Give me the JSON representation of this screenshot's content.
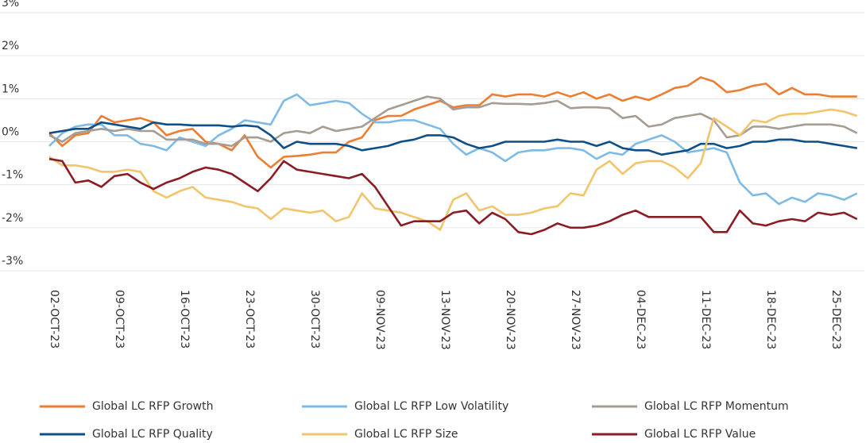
{
  "chart_data": {
    "type": "line",
    "categories": [
      "02-OCT-23",
      null,
      null,
      null,
      null,
      "09-OCT-23",
      null,
      null,
      null,
      null,
      "16-OCT-23",
      null,
      null,
      null,
      null,
      "23-OCT-23",
      null,
      null,
      null,
      null,
      "30-OCT-23",
      null,
      null,
      null,
      null,
      "09-NOV-23",
      null,
      null,
      null,
      null,
      "13-NOV-23",
      null,
      null,
      null,
      null,
      "20-NOV-23",
      null,
      null,
      null,
      null,
      "27-NOV-23",
      null,
      null,
      null,
      null,
      "04-DEC-23",
      null,
      null,
      null,
      null,
      "11-DEC-23",
      null,
      null,
      null,
      null,
      "18-DEC-23",
      null,
      null,
      null,
      null,
      "25-DEC-23",
      null,
      null
    ],
    "ylim": [
      -3,
      3
    ],
    "yticks": [
      {
        "value": -3,
        "label": "-3%"
      },
      {
        "value": -2,
        "label": "-2%"
      },
      {
        "value": -1,
        "label": "-1%"
      },
      {
        "value": 0,
        "label": "0%"
      },
      {
        "value": 1,
        "label": "1%"
      },
      {
        "value": 2,
        "label": "2%"
      },
      {
        "value": 3,
        "label": "3%"
      }
    ],
    "grid": true,
    "legend": "bottom",
    "series": [
      {
        "name": "Global LC RFP Growth",
        "color": "#ed7d31",
        "values": [
          0.2,
          -0.1,
          0.15,
          0.2,
          0.6,
          0.45,
          0.5,
          0.55,
          0.45,
          0.15,
          0.25,
          0.3,
          0.0,
          -0.05,
          -0.2,
          0.15,
          -0.35,
          -0.6,
          -0.35,
          -0.33,
          -0.3,
          -0.25,
          -0.25,
          0.0,
          0.1,
          0.5,
          0.6,
          0.6,
          0.75,
          0.85,
          0.95,
          0.8,
          0.85,
          0.85,
          1.1,
          1.05,
          1.1,
          1.1,
          1.05,
          1.15,
          1.05,
          1.15,
          1.0,
          1.1,
          0.95,
          1.05,
          0.97,
          1.1,
          1.25,
          1.3,
          1.5,
          1.4,
          1.15,
          1.2,
          1.3,
          1.35,
          1.1,
          1.25,
          1.1,
          1.1,
          1.05,
          1.05,
          1.05
        ]
      },
      {
        "name": "Global LC RFP Low Volatility",
        "color": "#7dbbe6",
        "values": [
          -0.1,
          0.2,
          0.35,
          0.4,
          0.4,
          0.15,
          0.15,
          -0.05,
          -0.1,
          -0.2,
          0.1,
          0.0,
          -0.1,
          0.15,
          0.3,
          0.5,
          0.45,
          0.4,
          0.95,
          1.1,
          0.85,
          0.9,
          0.95,
          0.9,
          0.65,
          0.45,
          0.45,
          0.5,
          0.5,
          0.4,
          0.3,
          -0.05,
          -0.3,
          -0.15,
          -0.25,
          -0.45,
          -0.25,
          -0.2,
          -0.2,
          -0.15,
          -0.15,
          -0.2,
          -0.4,
          -0.25,
          -0.3,
          -0.05,
          0.05,
          0.15,
          0.0,
          -0.25,
          -0.2,
          -0.15,
          -0.25,
          -0.95,
          -1.25,
          -1.2,
          -1.45,
          -1.3,
          -1.4,
          -1.2,
          -1.25,
          -1.35,
          -1.2
        ]
      },
      {
        "name": "Global LC RFP Momentum",
        "color": "#a59c94",
        "values": [
          0.15,
          0.0,
          0.2,
          0.25,
          0.3,
          0.25,
          0.3,
          0.25,
          0.25,
          0.05,
          0.05,
          0.05,
          -0.05,
          -0.05,
          -0.1,
          0.1,
          0.1,
          0.0,
          0.2,
          0.25,
          0.2,
          0.35,
          0.25,
          0.3,
          0.35,
          0.55,
          0.75,
          0.85,
          0.95,
          1.05,
          1.0,
          0.75,
          0.8,
          0.8,
          0.9,
          0.88,
          0.88,
          0.87,
          0.9,
          0.95,
          0.78,
          0.8,
          0.8,
          0.78,
          0.55,
          0.6,
          0.35,
          0.4,
          0.55,
          0.6,
          0.65,
          0.5,
          0.1,
          0.15,
          0.35,
          0.35,
          0.3,
          0.35,
          0.4,
          0.4,
          0.4,
          0.35,
          0.2
        ]
      },
      {
        "name": "Global LC RFP Quality",
        "color": "#0d4f86",
        "values": [
          0.2,
          0.25,
          0.3,
          0.3,
          0.45,
          0.4,
          0.35,
          0.3,
          0.45,
          0.4,
          0.4,
          0.38,
          0.38,
          0.38,
          0.35,
          0.38,
          0.35,
          0.15,
          -0.15,
          0.0,
          -0.05,
          -0.05,
          -0.05,
          -0.1,
          -0.2,
          -0.15,
          -0.1,
          0.0,
          0.05,
          0.15,
          0.15,
          0.1,
          -0.05,
          -0.15,
          -0.1,
          0.0,
          0.0,
          0.0,
          0.0,
          0.05,
          0.0,
          0.0,
          -0.1,
          0.0,
          -0.15,
          -0.2,
          -0.2,
          -0.3,
          -0.25,
          -0.2,
          -0.05,
          -0.05,
          -0.15,
          -0.1,
          0.0,
          0.0,
          0.05,
          0.05,
          0.0,
          0.0,
          -0.05,
          -0.1,
          -0.15
        ]
      },
      {
        "name": "Global LC RFP Size",
        "color": "#f2c46b",
        "values": [
          -0.35,
          -0.55,
          -0.55,
          -0.6,
          -0.7,
          -0.7,
          -0.65,
          -0.7,
          -1.15,
          -1.3,
          -1.15,
          -1.05,
          -1.3,
          -1.35,
          -1.4,
          -1.5,
          -1.55,
          -1.8,
          -1.55,
          -1.6,
          -1.65,
          -1.6,
          -1.85,
          -1.75,
          -1.2,
          -1.55,
          -1.6,
          -1.65,
          -1.75,
          -1.85,
          -2.05,
          -1.35,
          -1.2,
          -1.6,
          -1.5,
          -1.7,
          -1.7,
          -1.65,
          -1.55,
          -1.5,
          -1.2,
          -1.25,
          -0.65,
          -0.45,
          -0.75,
          -0.5,
          -0.45,
          -0.45,
          -0.6,
          -0.85,
          -0.5,
          0.55,
          0.35,
          0.15,
          0.5,
          0.45,
          0.6,
          0.65,
          0.65,
          0.7,
          0.75,
          0.7,
          0.6
        ]
      },
      {
        "name": "Global LC RFP Value",
        "color": "#8b1c24",
        "values": [
          -0.4,
          -0.45,
          -0.95,
          -0.9,
          -1.05,
          -0.8,
          -0.75,
          -0.95,
          -1.1,
          -0.95,
          -0.85,
          -0.7,
          -0.6,
          -0.65,
          -0.75,
          -0.95,
          -1.15,
          -0.85,
          -0.45,
          -0.65,
          -0.7,
          -0.75,
          -0.8,
          -0.85,
          -0.75,
          -1.05,
          -1.5,
          -1.95,
          -1.85,
          -1.85,
          -1.85,
          -1.65,
          -1.6,
          -1.9,
          -1.65,
          -1.8,
          -2.1,
          -2.15,
          -2.05,
          -1.9,
          -2.0,
          -2.0,
          -1.95,
          -1.85,
          -1.7,
          -1.6,
          -1.75,
          -1.75,
          -1.75,
          -1.75,
          -1.75,
          -2.1,
          -2.1,
          -1.6,
          -1.9,
          -1.95,
          -1.85,
          -1.8,
          -1.85,
          -1.65,
          -1.7,
          -1.65,
          -1.8
        ]
      }
    ]
  }
}
